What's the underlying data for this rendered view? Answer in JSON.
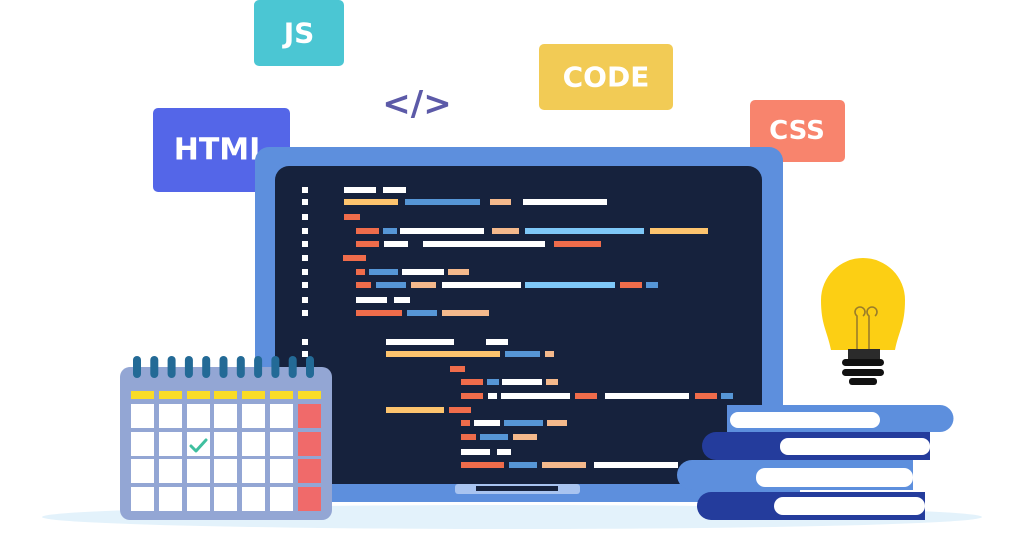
{
  "labels": {
    "js": "JS",
    "code_symbol": "</>",
    "code": "CODE",
    "html": "HTML",
    "css": "CSS"
  },
  "colors": {
    "js_badge": "#4bc6d3",
    "code_badge": "#f2cb55",
    "html_badge": "#5466e8",
    "css_badge": "#f8846d",
    "code_symbol": "#5c5aa8",
    "laptop_frame": "#5d8fdd",
    "screen": "#16223d",
    "calendar": "#93a6d4",
    "bulb": "#fccf14",
    "book_light": "#5d8fdd",
    "book_dark": "#243c9c"
  },
  "icons": [
    "laptop-icon",
    "calendar-icon",
    "checkmark-icon",
    "lightbulb-icon",
    "books-icon"
  ]
}
